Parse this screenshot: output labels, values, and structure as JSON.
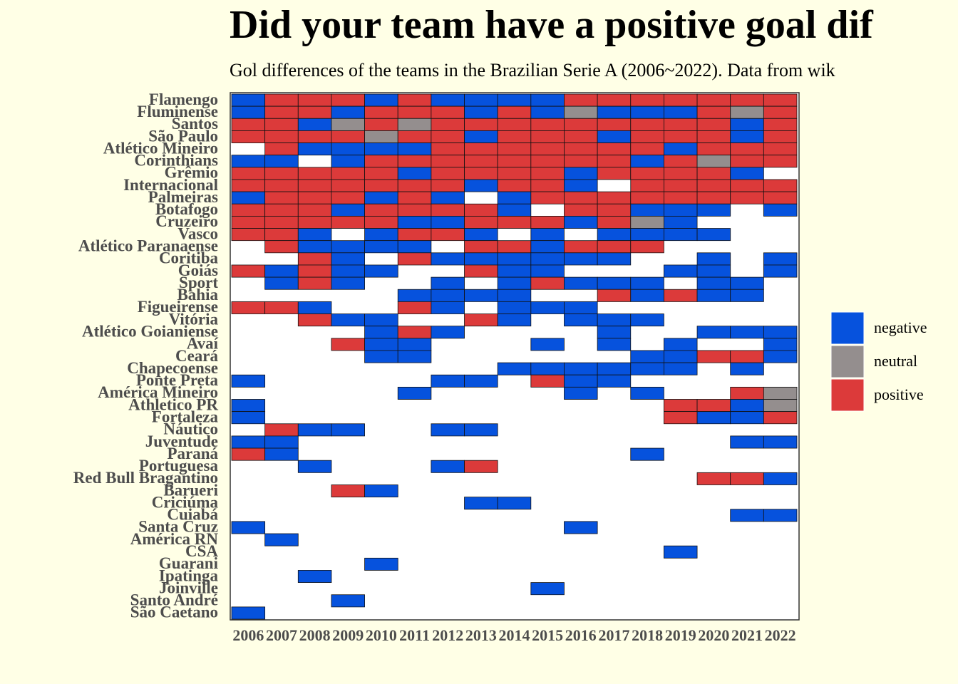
{
  "chart_data": {
    "type": "heatmap",
    "title": "Did your team have a positive goal dif",
    "subtitle": "Gol differences of the teams in the Brazilian Serie A (2006~2022). Data from wik",
    "x": [
      2006,
      2007,
      2008,
      2009,
      2010,
      2011,
      2012,
      2013,
      2014,
      2015,
      2016,
      2017,
      2018,
      2019,
      2020,
      2021,
      2022
    ],
    "levels": [
      {
        "name": "negative",
        "color": "#0652dd"
      },
      {
        "name": "neutral",
        "color": "#948e8e"
      },
      {
        "name": "positive",
        "color": "#dc3a3a"
      }
    ],
    "series": [
      {
        "name": "Flamengo",
        "values": [
          "negative",
          "positive",
          "positive",
          "positive",
          "negative",
          "positive",
          "negative",
          "negative",
          "negative",
          "negative",
          "positive",
          "positive",
          "positive",
          "positive",
          "positive",
          "positive",
          "positive"
        ]
      },
      {
        "name": "Fluminense",
        "values": [
          "negative",
          "positive",
          "positive",
          "negative",
          "positive",
          "positive",
          "positive",
          "negative",
          "positive",
          "negative",
          "neutral",
          "negative",
          "negative",
          "negative",
          "positive",
          "neutral",
          "positive"
        ]
      },
      {
        "name": "Santos",
        "values": [
          "positive",
          "positive",
          "negative",
          "neutral",
          "positive",
          "neutral",
          "positive",
          "positive",
          "positive",
          "positive",
          "positive",
          "positive",
          "positive",
          "positive",
          "positive",
          "negative",
          "positive"
        ]
      },
      {
        "name": "São Paulo",
        "values": [
          "positive",
          "positive",
          "positive",
          "positive",
          "neutral",
          "positive",
          "positive",
          "negative",
          "positive",
          "positive",
          "positive",
          "negative",
          "positive",
          "positive",
          "positive",
          "negative",
          "positive"
        ]
      },
      {
        "name": "Atlético Mineiro",
        "values": [
          null,
          "positive",
          "negative",
          "negative",
          "negative",
          "negative",
          "positive",
          "positive",
          "positive",
          "positive",
          "positive",
          "positive",
          "positive",
          "negative",
          "positive",
          "positive",
          "positive"
        ]
      },
      {
        "name": "Corinthians",
        "values": [
          "negative",
          "negative",
          null,
          "negative",
          "positive",
          "positive",
          "positive",
          "positive",
          "positive",
          "positive",
          "positive",
          "positive",
          "negative",
          "positive",
          "neutral",
          "positive",
          "positive"
        ]
      },
      {
        "name": "Grêmio",
        "values": [
          "positive",
          "positive",
          "positive",
          "positive",
          "positive",
          "negative",
          "positive",
          "positive",
          "positive",
          "positive",
          "negative",
          "positive",
          "positive",
          "positive",
          "positive",
          "negative",
          null
        ]
      },
      {
        "name": "Internacional",
        "values": [
          "positive",
          "positive",
          "positive",
          "positive",
          "positive",
          "positive",
          "positive",
          "negative",
          "positive",
          "positive",
          "negative",
          null,
          "positive",
          "positive",
          "positive",
          "positive",
          "positive"
        ]
      },
      {
        "name": "Palmeiras",
        "values": [
          "negative",
          "positive",
          "positive",
          "positive",
          "negative",
          "positive",
          "negative",
          null,
          "negative",
          "positive",
          "positive",
          "positive",
          "positive",
          "positive",
          "positive",
          "positive",
          "positive"
        ]
      },
      {
        "name": "Botafogo",
        "values": [
          "positive",
          "positive",
          "positive",
          "negative",
          "positive",
          "positive",
          "positive",
          "positive",
          "negative",
          null,
          "positive",
          "positive",
          "negative",
          "negative",
          "negative",
          null,
          "negative"
        ]
      },
      {
        "name": "Cruzeiro",
        "values": [
          "positive",
          "positive",
          "positive",
          "positive",
          "positive",
          "negative",
          "negative",
          "positive",
          "positive",
          "positive",
          "negative",
          "positive",
          "neutral",
          "negative",
          null,
          null,
          null
        ]
      },
      {
        "name": "Vasco",
        "values": [
          "positive",
          "positive",
          "negative",
          null,
          "negative",
          "positive",
          "positive",
          "negative",
          null,
          "negative",
          null,
          "negative",
          "negative",
          "negative",
          "negative",
          null,
          null
        ]
      },
      {
        "name": "Atlético Paranaense",
        "values": [
          null,
          "positive",
          "negative",
          "negative",
          "negative",
          "negative",
          null,
          "positive",
          "positive",
          "negative",
          "positive",
          "positive",
          "positive",
          null,
          null,
          null,
          null
        ]
      },
      {
        "name": "Coritiba",
        "values": [
          null,
          null,
          "positive",
          "negative",
          null,
          "positive",
          "negative",
          "negative",
          "negative",
          "negative",
          "negative",
          "negative",
          null,
          null,
          "negative",
          null,
          "negative"
        ]
      },
      {
        "name": "Goiás",
        "values": [
          "positive",
          "negative",
          "positive",
          "negative",
          "negative",
          null,
          null,
          "positive",
          "negative",
          "negative",
          null,
          null,
          null,
          "negative",
          "negative",
          null,
          "negative"
        ]
      },
      {
        "name": "Sport",
        "values": [
          null,
          "negative",
          "positive",
          "negative",
          null,
          null,
          "negative",
          null,
          "negative",
          "positive",
          "negative",
          "negative",
          "negative",
          null,
          "negative",
          "negative",
          null
        ]
      },
      {
        "name": "Bahia",
        "values": [
          null,
          null,
          null,
          null,
          null,
          "negative",
          "negative",
          "negative",
          "negative",
          null,
          null,
          "positive",
          "negative",
          "positive",
          "negative",
          "negative",
          null
        ]
      },
      {
        "name": "Figueirense",
        "values": [
          "positive",
          "positive",
          "negative",
          null,
          null,
          "positive",
          "negative",
          null,
          "negative",
          "negative",
          "negative",
          null,
          null,
          null,
          null,
          null,
          null
        ]
      },
      {
        "name": "Vitória",
        "values": [
          null,
          null,
          "positive",
          "negative",
          "negative",
          null,
          null,
          "positive",
          "negative",
          null,
          "negative",
          "negative",
          "negative",
          null,
          null,
          null,
          null
        ]
      },
      {
        "name": "Atlético Goianiense",
        "values": [
          null,
          null,
          null,
          null,
          "negative",
          "positive",
          "negative",
          null,
          null,
          null,
          null,
          "negative",
          null,
          null,
          "negative",
          "negative",
          "negative"
        ]
      },
      {
        "name": "Avaí",
        "values": [
          null,
          null,
          null,
          "positive",
          "negative",
          "negative",
          null,
          null,
          null,
          "negative",
          null,
          "negative",
          null,
          "negative",
          null,
          null,
          "negative"
        ]
      },
      {
        "name": "Ceará",
        "values": [
          null,
          null,
          null,
          null,
          "negative",
          "negative",
          null,
          null,
          null,
          null,
          null,
          null,
          "negative",
          "negative",
          "positive",
          "positive",
          "negative"
        ]
      },
      {
        "name": "Chapecoense",
        "values": [
          null,
          null,
          null,
          null,
          null,
          null,
          null,
          null,
          "negative",
          "negative",
          "negative",
          "negative",
          "negative",
          "negative",
          null,
          "negative",
          null
        ]
      },
      {
        "name": "Ponte Preta",
        "values": [
          "negative",
          null,
          null,
          null,
          null,
          null,
          "negative",
          "negative",
          null,
          "positive",
          "negative",
          "negative",
          null,
          null,
          null,
          null,
          null
        ]
      },
      {
        "name": "América Mineiro",
        "values": [
          null,
          null,
          null,
          null,
          null,
          "negative",
          null,
          null,
          null,
          null,
          "negative",
          null,
          "negative",
          null,
          null,
          "positive",
          "neutral"
        ]
      },
      {
        "name": "Athletico PR",
        "values": [
          "negative",
          null,
          null,
          null,
          null,
          null,
          null,
          null,
          null,
          null,
          null,
          null,
          null,
          "positive",
          "positive",
          "negative",
          "neutral"
        ]
      },
      {
        "name": "Fortaleza",
        "values": [
          "negative",
          null,
          null,
          null,
          null,
          null,
          null,
          null,
          null,
          null,
          null,
          null,
          null,
          "positive",
          "negative",
          "negative",
          "positive"
        ]
      },
      {
        "name": "Náutico",
        "values": [
          null,
          "positive",
          "negative",
          "negative",
          null,
          null,
          "negative",
          "negative",
          null,
          null,
          null,
          null,
          null,
          null,
          null,
          null,
          null
        ]
      },
      {
        "name": "Juventude",
        "values": [
          "negative",
          "negative",
          null,
          null,
          null,
          null,
          null,
          null,
          null,
          null,
          null,
          null,
          null,
          null,
          null,
          "negative",
          "negative"
        ]
      },
      {
        "name": "Paraná",
        "values": [
          "positive",
          "negative",
          null,
          null,
          null,
          null,
          null,
          null,
          null,
          null,
          null,
          null,
          "negative",
          null,
          null,
          null,
          null
        ]
      },
      {
        "name": "Portuguesa",
        "values": [
          null,
          null,
          "negative",
          null,
          null,
          null,
          "negative",
          "positive",
          null,
          null,
          null,
          null,
          null,
          null,
          null,
          null,
          null
        ]
      },
      {
        "name": "Red Bull Bragantino",
        "values": [
          null,
          null,
          null,
          null,
          null,
          null,
          null,
          null,
          null,
          null,
          null,
          null,
          null,
          null,
          "positive",
          "positive",
          "negative"
        ]
      },
      {
        "name": "Barueri",
        "values": [
          null,
          null,
          null,
          "positive",
          "negative",
          null,
          null,
          null,
          null,
          null,
          null,
          null,
          null,
          null,
          null,
          null,
          null
        ]
      },
      {
        "name": "Criciúma",
        "values": [
          null,
          null,
          null,
          null,
          null,
          null,
          null,
          "negative",
          "negative",
          null,
          null,
          null,
          null,
          null,
          null,
          null,
          null
        ]
      },
      {
        "name": "Cuiabá",
        "values": [
          null,
          null,
          null,
          null,
          null,
          null,
          null,
          null,
          null,
          null,
          null,
          null,
          null,
          null,
          null,
          "negative",
          "negative"
        ]
      },
      {
        "name": "Santa Cruz",
        "values": [
          "negative",
          null,
          null,
          null,
          null,
          null,
          null,
          null,
          null,
          null,
          "negative",
          null,
          null,
          null,
          null,
          null,
          null
        ]
      },
      {
        "name": "América RN",
        "values": [
          null,
          "negative",
          null,
          null,
          null,
          null,
          null,
          null,
          null,
          null,
          null,
          null,
          null,
          null,
          null,
          null,
          null
        ]
      },
      {
        "name": "CSA",
        "values": [
          null,
          null,
          null,
          null,
          null,
          null,
          null,
          null,
          null,
          null,
          null,
          null,
          null,
          "negative",
          null,
          null,
          null
        ]
      },
      {
        "name": "Guarani",
        "values": [
          null,
          null,
          null,
          null,
          "negative",
          null,
          null,
          null,
          null,
          null,
          null,
          null,
          null,
          null,
          null,
          null,
          null
        ]
      },
      {
        "name": "Ipatinga",
        "values": [
          null,
          null,
          "negative",
          null,
          null,
          null,
          null,
          null,
          null,
          null,
          null,
          null,
          null,
          null,
          null,
          null,
          null
        ]
      },
      {
        "name": "Joinville",
        "values": [
          null,
          null,
          null,
          null,
          null,
          null,
          null,
          null,
          null,
          "negative",
          null,
          null,
          null,
          null,
          null,
          null,
          null
        ]
      },
      {
        "name": "Santo André",
        "values": [
          null,
          null,
          null,
          "negative",
          null,
          null,
          null,
          null,
          null,
          null,
          null,
          null,
          null,
          null,
          null,
          null,
          null
        ]
      },
      {
        "name": "São Caetano",
        "values": [
          "negative",
          null,
          null,
          null,
          null,
          null,
          null,
          null,
          null,
          null,
          null,
          null,
          null,
          null,
          null,
          null,
          null
        ]
      }
    ]
  }
}
